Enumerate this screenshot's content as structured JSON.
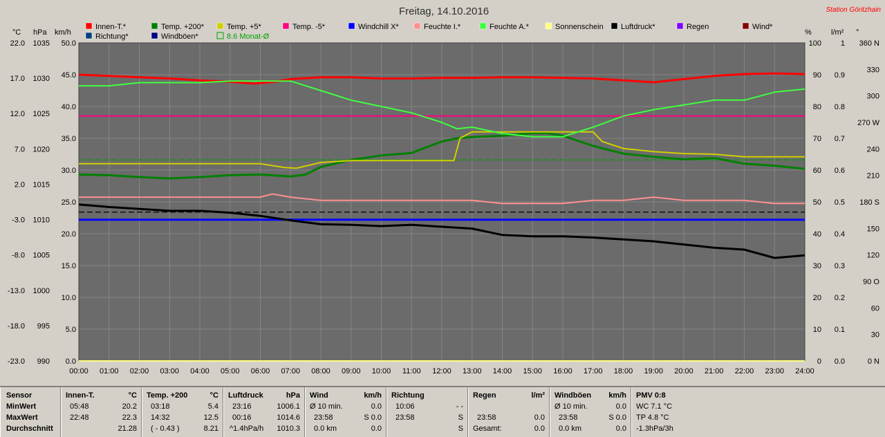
{
  "title": "Freitag, 14.10.2016",
  "station": "Station Göritzhain",
  "colors": {
    "innen": "#ff0000",
    "temp200": "#008000",
    "temp5": "#d0d000",
    "temp_5": "#ff0080",
    "windchill": "#0000ff",
    "feuchte_i": "#ff9090",
    "feuchte_a": "#40ff40",
    "sonne": "#ffff80",
    "luftdruck": "#000000",
    "regen": "#8000ff",
    "wind": "#800000",
    "richtung": "#004080",
    "windboeen": "#000080",
    "monat": "#00a000",
    "plot_bg": "#6b6b6b",
    "grid": "#858585"
  },
  "legend": [
    {
      "label": "Innen-T.*",
      "color": "#ff0000",
      "type": "box"
    },
    {
      "label": "Temp. +200*",
      "color": "#008000",
      "type": "box"
    },
    {
      "label": "Temp. +5*",
      "color": "#d0d000",
      "type": "box"
    },
    {
      "label": "Temp. -5*",
      "color": "#ff0080",
      "type": "box"
    },
    {
      "label": "Windchill X*",
      "color": "#0000ff",
      "type": "box"
    },
    {
      "label": "Feuchte I.*",
      "color": "#ff9090",
      "type": "box"
    },
    {
      "label": "Feuchte A.*",
      "color": "#40ff40",
      "type": "box"
    },
    {
      "label": "Sonnenschein",
      "color": "#ffff80",
      "type": "box"
    },
    {
      "label": "Luftdruck*",
      "color": "#000000",
      "type": "box"
    },
    {
      "label": "Regen",
      "color": "#8000ff",
      "type": "box"
    },
    {
      "label": "Wind*",
      "color": "#800000",
      "type": "box"
    },
    {
      "label": "Richtung*",
      "color": "#004080",
      "type": "box"
    },
    {
      "label": "Windböen*",
      "color": "#000080",
      "type": "box"
    },
    {
      "label": "8.6 Monat-Ø",
      "color": "#00a000",
      "type": "outline"
    }
  ],
  "axis_units": {
    "celsius": "°C",
    "hpa": "hPa",
    "kmh": "km/h",
    "percent": "%",
    "lm2": "l/m²",
    "deg": "°"
  },
  "chart_data": {
    "type": "line",
    "x_ticks": [
      "00:00",
      "01:00",
      "02:00",
      "03:00",
      "04:00",
      "05:00",
      "06:00",
      "07:00",
      "08:00",
      "09:00",
      "10:00",
      "11:00",
      "12:00",
      "13:00",
      "14:00",
      "15:00",
      "16:00",
      "17:00",
      "18:00",
      "19:00",
      "20:00",
      "21:00",
      "22:00",
      "23:00",
      "24:00"
    ],
    "xlim": [
      0,
      24
    ],
    "y_temp_ticks": [
      "22.0",
      "17.0",
      "12.0",
      "7.0",
      "2.0",
      "-3.0",
      "-8.0",
      "-13.0",
      "-18.0",
      "-23.0"
    ],
    "y_temp_lim": [
      -23,
      27
    ],
    "y_hpa_ticks": [
      "1035",
      "1030",
      "1025",
      "1020",
      "1015",
      "1010",
      "1005",
      "1000",
      "995",
      "990"
    ],
    "y_kmh_ticks": [
      "50.0",
      "45.0",
      "40.0",
      "35.0",
      "30.0",
      "25.0",
      "20.0",
      "15.0",
      "10.0",
      "5.0",
      "0.0"
    ],
    "y_kmh_lim": [
      0,
      50
    ],
    "y_percent_ticks": [
      "100",
      "90",
      "80",
      "70",
      "60",
      "50",
      "40",
      "30",
      "20",
      "10",
      "0"
    ],
    "y_percent_lim": [
      0,
      100
    ],
    "y_lm2_ticks": [
      "1",
      "0.9",
      "0.8",
      "0.7",
      "0.6",
      "0.5",
      "0.4",
      "0.3",
      "0.2",
      "0.1",
      "0.0"
    ],
    "y_deg_ticks": [
      "360 N",
      "330",
      "300",
      "270 W",
      "240",
      "210",
      "180 S",
      "150",
      "120",
      "90 O",
      "60",
      "30",
      "0 N"
    ],
    "grid": true,
    "series": [
      {
        "name": "Innen-T.*",
        "axis": "celsius",
        "color": "#ff0000",
        "width": 3,
        "x": [
          0,
          1,
          2,
          3,
          4,
          5,
          5.8,
          6.5,
          7,
          8,
          9,
          10,
          11,
          12,
          13,
          14,
          15,
          16,
          17,
          18,
          19,
          20,
          21,
          22,
          23,
          24
        ],
        "y": [
          22.0,
          21.8,
          21.6,
          21.4,
          21.1,
          20.9,
          20.6,
          20.9,
          21.3,
          21.6,
          21.6,
          21.4,
          21.4,
          21.5,
          21.5,
          21.6,
          21.6,
          21.5,
          21.4,
          21.1,
          20.8,
          21.3,
          21.8,
          22.1,
          22.2,
          22.1
        ]
      },
      {
        "name": "Temp. +200*",
        "axis": "celsius",
        "color": "#008000",
        "width": 3,
        "x": [
          0,
          1,
          2,
          3,
          4,
          5,
          6,
          7,
          7.5,
          8,
          9,
          10,
          11,
          12,
          12.5,
          13,
          14,
          15,
          15.5,
          16,
          17,
          18,
          19,
          20,
          21,
          22,
          23,
          24
        ],
        "y": [
          6.3,
          6.2,
          5.9,
          5.7,
          5.9,
          6.2,
          6.3,
          6.0,
          6.3,
          7.5,
          8.6,
          9.3,
          9.7,
          11.5,
          12.0,
          12.2,
          12.4,
          12.8,
          12.8,
          12.4,
          10.8,
          9.6,
          9.1,
          8.7,
          8.9,
          8.0,
          7.7,
          7.2
        ]
      },
      {
        "name": "Temp. +5*",
        "axis": "celsius",
        "color": "#d0d000",
        "width": 2,
        "x": [
          0,
          6,
          6.8,
          7.2,
          8,
          9,
          10,
          11,
          12,
          12.4,
          12.6,
          13,
          14,
          15,
          16,
          17,
          17.3,
          18,
          19,
          20,
          21,
          22,
          23,
          24
        ],
        "y": [
          8.0,
          8.0,
          7.4,
          7.3,
          8.2,
          8.5,
          8.5,
          8.5,
          8.5,
          8.5,
          12.0,
          13.0,
          13.0,
          13.0,
          13.0,
          13.0,
          11.5,
          10.4,
          9.9,
          9.6,
          9.5,
          9.1,
          9.1,
          9.1
        ]
      },
      {
        "name": "Temp. -5*",
        "axis": "celsius",
        "color": "#ff0080",
        "width": 2,
        "x": [
          0,
          24
        ],
        "y": [
          15.5,
          15.5
        ]
      },
      {
        "name": "Windchill X*",
        "axis": "celsius",
        "color": "#0000ff",
        "width": 3,
        "x": [
          0,
          24
        ],
        "y": [
          -0.8,
          -0.8
        ]
      },
      {
        "name": "Feuchte I.*",
        "axis": "percent",
        "color": "#ff9090",
        "width": 2,
        "x": [
          0,
          6,
          6.4,
          7,
          8,
          9,
          10,
          11,
          12,
          13,
          14,
          15,
          16,
          17,
          18,
          19,
          20,
          21,
          22,
          23,
          24
        ],
        "y": [
          51.5,
          51.5,
          52.5,
          51.5,
          50.5,
          50.5,
          50.5,
          50.5,
          50.5,
          50.5,
          49.5,
          49.5,
          49.5,
          50.5,
          50.5,
          51.5,
          50.5,
          50.5,
          50.5,
          49.5,
          49.5
        ]
      },
      {
        "name": "Feuchte A.*",
        "axis": "percent",
        "color": "#40ff40",
        "width": 2,
        "x": [
          0,
          1,
          2,
          3,
          4,
          5,
          6,
          7,
          8,
          9,
          10,
          11,
          12,
          12.5,
          13,
          13.5,
          14,
          15,
          16,
          17,
          18,
          19,
          20,
          21,
          22,
          23,
          24
        ],
        "y": [
          86.5,
          86.5,
          87.5,
          87.5,
          87.5,
          88,
          88,
          88,
          85,
          82,
          80,
          78,
          75,
          73,
          73.5,
          72.5,
          71.5,
          70.5,
          70.5,
          73.5,
          77,
          79,
          80.5,
          82,
          82,
          84.5,
          85.5
        ]
      },
      {
        "name": "Luftdruck*",
        "axis": "hpa",
        "color": "#000000",
        "width": 3,
        "x": [
          0,
          1,
          2,
          3,
          4,
          5,
          6,
          7,
          8,
          9,
          10,
          11,
          12,
          13,
          14,
          15,
          16,
          17,
          18,
          19,
          20,
          21,
          22,
          23,
          24
        ],
        "y": [
          1014.6,
          1014.2,
          1013.9,
          1013.6,
          1013.6,
          1013.3,
          1012.8,
          1012.1,
          1011.5,
          1011.4,
          1011.2,
          1011.4,
          1011.1,
          1010.8,
          1009.8,
          1009.6,
          1009.6,
          1009.4,
          1009.1,
          1008.8,
          1008.3,
          1007.8,
          1007.5,
          1006.2,
          1006.6
        ]
      },
      {
        "name": "Sonnenschein",
        "axis": "kmh",
        "color": "#ffff80",
        "width": 2,
        "x": [
          0,
          24
        ],
        "y": [
          0,
          0
        ]
      }
    ],
    "reference_lines": [
      {
        "name": "8.6 Monat-Ø",
        "axis": "celsius",
        "y": 8.6,
        "color": "#00a000",
        "dash": true
      },
      {
        "label": "",
        "axis": "celsius",
        "y": 0.4,
        "color": "#000000",
        "dash": true
      }
    ]
  },
  "stats": {
    "row_labels": [
      "Sensor",
      "MinWert",
      "MaxWert",
      "Durchschnitt"
    ],
    "innen": {
      "head": "Innen-T.",
      "unit": "°C",
      "min_time": "05:48",
      "min_val": "20.2",
      "max_time": "22:48",
      "max_val": "22.3",
      "avg": "21.28"
    },
    "temp": {
      "head": "Temp. +200",
      "unit": "°C",
      "min_time": "03:18",
      "min_val": "5.4",
      "max_time": "14:32",
      "max_val": "12.5",
      "avg_note": "( - 0.43 )",
      "avg": "8.21"
    },
    "luftdruck": {
      "head": "Luftdruck",
      "unit": "hPa",
      "min_time": "23:16",
      "min_val": "1006.1",
      "max_time": "00:16",
      "max_val": "1014.6",
      "avg_note": "^1.4hPa/h",
      "avg": "1010.3"
    },
    "wind": {
      "head": "Wind",
      "unit": "km/h",
      "min_label": "Ø 10 min.",
      "min_val": "0.0",
      "max_time": "23:58",
      "max_val": "S 0.0",
      "avg_label": "0.0 km",
      "avg": "0.0"
    },
    "richtung": {
      "head": "Richtung",
      "min_time": "10:06",
      "min_val": "- -",
      "max_time": "23:58",
      "max_val": "S",
      "avg": "S"
    },
    "regen": {
      "head": "Regen",
      "unit": "l/m²",
      "max_time": "23:58",
      "max_val": "0.0",
      "avg_label": "Gesamt:",
      "avg": "0.0"
    },
    "boeen": {
      "head": "Windböen",
      "unit": "km/h",
      "min_label": "Ø 10 min.",
      "min_val": "0.0",
      "max_time": "23:58",
      "max_val": "S 0.0",
      "avg_label": "0.0 km",
      "avg": "0.0"
    },
    "pmv": {
      "head": "PMV 0:8",
      "line1": "WC 7.1 °C",
      "line2": "TP 4.8 °C",
      "line3": "-1.3hPa/3h"
    }
  }
}
